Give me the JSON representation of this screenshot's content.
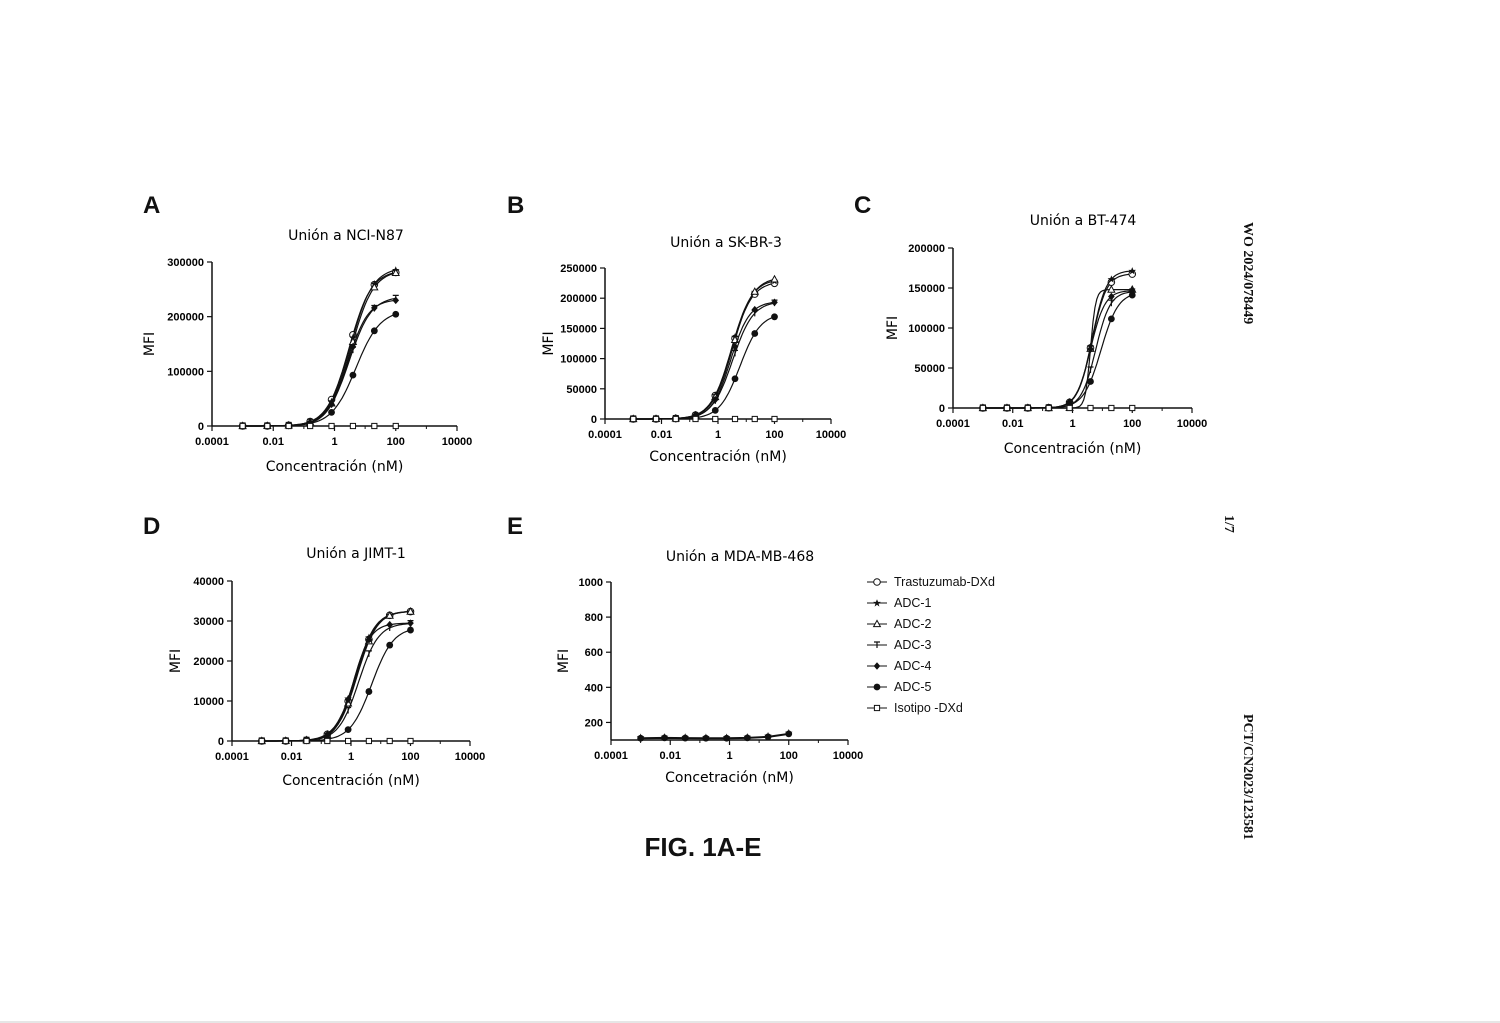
{
  "figure": {
    "caption": "FIG. 1A-E",
    "side_labels": {
      "top": "WO 2024/078449",
      "middle": "1/7",
      "bottom": "PCT/CN2023/123581"
    }
  },
  "legend": [
    {
      "name": "Trastuzumab-DXd",
      "marker": "open-circle"
    },
    {
      "name": "ADC-1",
      "marker": "star"
    },
    {
      "name": "ADC-2",
      "marker": "open-triangle"
    },
    {
      "name": "ADC-3",
      "marker": "tee"
    },
    {
      "name": "ADC-4",
      "marker": "filled-diamond"
    },
    {
      "name": "ADC-5",
      "marker": "filled-circle"
    },
    {
      "name": "Isotipo -DXd",
      "marker": "open-square"
    }
  ],
  "chart_data": [
    {
      "panel": "A",
      "type": "scatter",
      "scale_x": "log",
      "title": "Unión a NCI-N87",
      "xlabel": "Concentración (nM)",
      "ylabel": "MFI",
      "xlim": [
        0.0001,
        10000
      ],
      "ylim": [
        0,
        300000
      ],
      "x_ticks": [
        "0.0001",
        "0.01",
        "1",
        "100",
        "10000"
      ],
      "y_ticks": [
        "0",
        "100000",
        "200000",
        "300000"
      ],
      "x": [
        0.001,
        0.0064,
        0.032,
        0.16,
        0.8,
        4,
        20,
        100
      ],
      "series": [
        {
          "name": "Trastuzumab-DXd",
          "top": 285000,
          "ec50": 3.0,
          "hill": 1.2
        },
        {
          "name": "ADC-1",
          "top": 290000,
          "ec50": 3.3,
          "hill": 1.2
        },
        {
          "name": "ADC-2",
          "top": 285000,
          "ec50": 3.5,
          "hill": 1.2
        },
        {
          "name": "ADC-3",
          "top": 237000,
          "ec50": 3.0,
          "hill": 1.2
        },
        {
          "name": "ADC-4",
          "top": 232000,
          "ec50": 2.7,
          "hill": 1.3
        },
        {
          "name": "ADC-5",
          "top": 212000,
          "ec50": 5.0,
          "hill": 1.1
        },
        {
          "name": "Isotipo -DXd",
          "top": 0,
          "ec50": 1,
          "hill": 1
        }
      ]
    },
    {
      "panel": "B",
      "type": "scatter",
      "scale_x": "log",
      "title": "Unión a SK-BR-3",
      "xlabel": "Concentración (nM)",
      "ylabel": "MFI",
      "xlim": [
        0.0001,
        10000
      ],
      "ylim": [
        0,
        250000
      ],
      "x_ticks": [
        "0.0001",
        "0.01",
        "1",
        "100",
        "10000"
      ],
      "y_ticks": [
        "0",
        "50000",
        "100000",
        "150000",
        "200000",
        "250000"
      ],
      "x": [
        0.001,
        0.0064,
        0.032,
        0.16,
        0.8,
        4,
        20,
        100
      ],
      "series": [
        {
          "name": "Trastuzumab-DXd",
          "top": 228000,
          "ec50": 3.0,
          "hill": 1.2
        },
        {
          "name": "ADC-1",
          "top": 232000,
          "ec50": 3.0,
          "hill": 1.2
        },
        {
          "name": "ADC-2",
          "top": 235000,
          "ec50": 3.3,
          "hill": 1.2
        },
        {
          "name": "ADC-3",
          "top": 195000,
          "ec50": 3.3,
          "hill": 1.2
        },
        {
          "name": "ADC-4",
          "top": 195000,
          "ec50": 2.8,
          "hill": 1.3
        },
        {
          "name": "ADC-5",
          "top": 175000,
          "ec50": 6.0,
          "hill": 1.2
        },
        {
          "name": "Isotipo -DXd",
          "top": 0,
          "ec50": 1,
          "hill": 1
        }
      ]
    },
    {
      "panel": "C",
      "type": "scatter",
      "scale_x": "log",
      "title": "Unión a BT-474",
      "xlabel": "Concentración (nM)",
      "ylabel": "MFI",
      "xlim": [
        0.0001,
        10000
      ],
      "ylim": [
        0,
        200000
      ],
      "x_ticks": [
        "0.0001",
        "0.01",
        "1",
        "100",
        "10000"
      ],
      "y_ticks": [
        "0",
        "50000",
        "100000",
        "150000",
        "200000"
      ],
      "x": [
        0.001,
        0.0064,
        0.032,
        0.16,
        0.8,
        4,
        20,
        100
      ],
      "series": [
        {
          "name": "Trastuzumab-DXd",
          "top": 168000,
          "ec50": 4.5,
          "hill": 1.8
        },
        {
          "name": "ADC-1",
          "top": 172000,
          "ec50": 4.5,
          "hill": 1.8
        },
        {
          "name": "ADC-2",
          "top": 148000,
          "ec50": 4.0,
          "hill": 5.0
        },
        {
          "name": "ADC-3",
          "top": 146000,
          "ec50": 6.0,
          "hill": 1.8
        },
        {
          "name": "ADC-4",
          "top": 147000,
          "ec50": 4.0,
          "hill": 1.8
        },
        {
          "name": "ADC-5",
          "top": 145000,
          "ec50": 9.0,
          "hill": 1.5
        },
        {
          "name": "Isotipo -DXd",
          "top": 0,
          "ec50": 1,
          "hill": 1
        }
      ]
    },
    {
      "panel": "D",
      "type": "scatter",
      "scale_x": "log",
      "title": "Unión a JIMT-1",
      "xlabel": "Concentración (nM)",
      "ylabel": "MFI",
      "xlim": [
        0.0001,
        10000
      ],
      "ylim": [
        0,
        40000
      ],
      "x_ticks": [
        "0.0001",
        "0.01",
        "1",
        "100",
        "10000"
      ],
      "y_ticks": [
        "0",
        "10000",
        "20000",
        "30000",
        "40000"
      ],
      "x": [
        0.001,
        0.0064,
        0.032,
        0.16,
        0.8,
        4,
        20,
        100
      ],
      "series": [
        {
          "name": "Trastuzumab-DXd",
          "top": 32500,
          "ec50": 1.5,
          "hill": 1.3
        },
        {
          "name": "ADC-1",
          "top": 32500,
          "ec50": 1.4,
          "hill": 1.3
        },
        {
          "name": "ADC-2",
          "top": 32500,
          "ec50": 1.6,
          "hill": 1.3
        },
        {
          "name": "ADC-3",
          "top": 29500,
          "ec50": 1.8,
          "hill": 1.3
        },
        {
          "name": "ADC-4",
          "top": 29500,
          "ec50": 1.2,
          "hill": 1.5
        },
        {
          "name": "ADC-5",
          "top": 28500,
          "ec50": 5.0,
          "hill": 1.2
        },
        {
          "name": "Isotipo -DXd",
          "top": 0,
          "ec50": 1,
          "hill": 1
        }
      ]
    },
    {
      "panel": "E",
      "type": "scatter",
      "scale_x": "log",
      "title": "Unión a MDA-MB-468",
      "xlabel": "Concetración (nM)",
      "ylabel": "MFI",
      "xlim": [
        0.0001,
        10000
      ],
      "ylim": [
        100,
        1000
      ],
      "x_ticks": [
        "0.0001",
        "0.01",
        "1",
        "100",
        "10000"
      ],
      "y_ticks": [
        "200",
        "400",
        "600",
        "800",
        "1000"
      ],
      "x": [
        0.001,
        0.0064,
        0.032,
        0.16,
        0.8,
        4,
        20,
        100
      ],
      "flat_values": [
        110,
        112,
        111,
        110,
        110,
        112,
        118,
        135
      ]
    }
  ]
}
